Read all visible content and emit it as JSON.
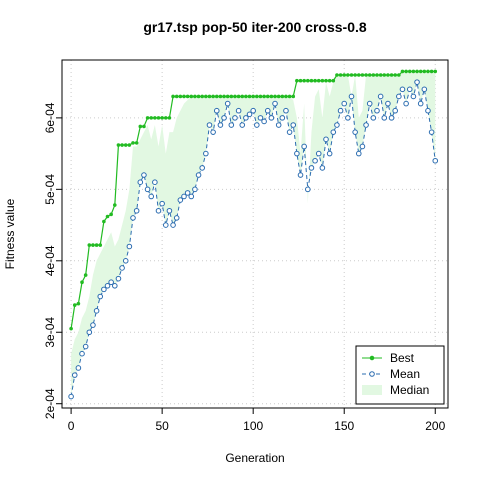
{
  "chart_data": {
    "type": "line",
    "title": "gr17.tsp pop-50 iter-200 cross-0.8",
    "x_label": "Generation",
    "y_label": "Fitness value",
    "xlim": [
      -5,
      207
    ],
    "ylim": [
      0.000194,
      0.000681
    ],
    "xticks": [
      0,
      50,
      100,
      150,
      200
    ],
    "yticks": [
      {
        "value": 0.0002,
        "label": "2e-04"
      },
      {
        "value": 0.0003,
        "label": "3e-04"
      },
      {
        "value": 0.0004,
        "label": "4e-04"
      },
      {
        "value": 0.0005,
        "label": "5e-04"
      },
      {
        "value": 0.0006,
        "label": "6e-04"
      }
    ],
    "grid": true,
    "legend": "bottomright",
    "x": [
      0,
      2,
      4,
      6,
      8,
      10,
      12,
      14,
      16,
      18,
      20,
      22,
      24,
      26,
      28,
      30,
      32,
      34,
      36,
      38,
      40,
      42,
      44,
      46,
      48,
      50,
      52,
      54,
      56,
      58,
      60,
      62,
      64,
      66,
      68,
      70,
      72,
      74,
      76,
      78,
      80,
      82,
      84,
      86,
      88,
      90,
      92,
      94,
      96,
      98,
      100,
      102,
      104,
      106,
      108,
      110,
      112,
      114,
      116,
      118,
      120,
      122,
      124,
      126,
      128,
      130,
      132,
      134,
      136,
      138,
      140,
      142,
      144,
      146,
      148,
      150,
      152,
      154,
      156,
      158,
      160,
      162,
      164,
      166,
      168,
      170,
      172,
      174,
      176,
      178,
      180,
      182,
      184,
      186,
      188,
      190,
      192,
      194,
      196,
      198,
      200
    ],
    "series": [
      {
        "name": "Best",
        "color": "#22bb22",
        "values": [
          0.000305,
          0.000338,
          0.00034,
          0.00037,
          0.00038,
          0.000422,
          0.000422,
          0.000422,
          0.000422,
          0.000455,
          0.000462,
          0.000465,
          0.000478,
          0.000562,
          0.000562,
          0.000562,
          0.000562,
          0.000565,
          0.000565,
          0.000588,
          0.000588,
          0.0006,
          0.0006,
          0.0006,
          0.0006,
          0.0006,
          0.0006,
          0.0006,
          0.00063,
          0.00063,
          0.00063,
          0.00063,
          0.00063,
          0.00063,
          0.00063,
          0.00063,
          0.00063,
          0.00063,
          0.00063,
          0.00063,
          0.00063,
          0.00063,
          0.00063,
          0.00063,
          0.00063,
          0.00063,
          0.00063,
          0.00063,
          0.00063,
          0.00063,
          0.00063,
          0.00063,
          0.00063,
          0.00063,
          0.00063,
          0.00063,
          0.00063,
          0.00063,
          0.00063,
          0.00063,
          0.00063,
          0.00063,
          0.000652,
          0.000652,
          0.000652,
          0.000652,
          0.000652,
          0.000652,
          0.000652,
          0.000652,
          0.000652,
          0.000652,
          0.000652,
          0.00066,
          0.00066,
          0.00066,
          0.00066,
          0.00066,
          0.00066,
          0.00066,
          0.00066,
          0.00066,
          0.00066,
          0.00066,
          0.00066,
          0.00066,
          0.00066,
          0.00066,
          0.00066,
          0.00066,
          0.00066,
          0.000665,
          0.000665,
          0.000665,
          0.000665,
          0.000665,
          0.000665,
          0.000665,
          0.000665,
          0.000665,
          0.000665
        ]
      },
      {
        "name": "Mean",
        "color": "#2b6cb0",
        "values": [
          0.00021,
          0.00024,
          0.00025,
          0.00027,
          0.00028,
          0.0003,
          0.00031,
          0.00033,
          0.00035,
          0.00036,
          0.000365,
          0.00037,
          0.000365,
          0.000375,
          0.00039,
          0.0004,
          0.00042,
          0.00046,
          0.00047,
          0.00051,
          0.00052,
          0.0005,
          0.00049,
          0.00051,
          0.00047,
          0.00048,
          0.00045,
          0.00047,
          0.00045,
          0.00046,
          0.000485,
          0.00049,
          0.000495,
          0.00049,
          0.0005,
          0.00052,
          0.00053,
          0.00055,
          0.00059,
          0.00058,
          0.00061,
          0.00059,
          0.0006,
          0.00062,
          0.00059,
          0.0006,
          0.00061,
          0.00059,
          0.0006,
          0.000605,
          0.00061,
          0.00059,
          0.0006,
          0.000595,
          0.00061,
          0.0006,
          0.00062,
          0.00059,
          0.0006,
          0.00061,
          0.00058,
          0.00059,
          0.00055,
          0.00052,
          0.00056,
          0.0005,
          0.00053,
          0.00054,
          0.00055,
          0.00053,
          0.00057,
          0.00055,
          0.00058,
          0.00059,
          0.00061,
          0.00062,
          0.0006,
          0.00063,
          0.00058,
          0.00055,
          0.00056,
          0.00059,
          0.00062,
          0.0006,
          0.00061,
          0.00063,
          0.0006,
          0.00062,
          0.0006,
          0.00061,
          0.00063,
          0.00064,
          0.00062,
          0.00064,
          0.00063,
          0.00065,
          0.00062,
          0.00064,
          0.00061,
          0.00058,
          0.00054
        ]
      },
      {
        "name": "Median",
        "color": "#e2f8e2",
        "values": [
          0.00027,
          0.00029,
          0.0003,
          0.00032,
          0.00033,
          0.00035,
          0.00038,
          0.0004,
          0.00041,
          0.00042,
          0.00043,
          0.00044,
          0.00042,
          0.00043,
          0.00045,
          0.00047,
          0.0005,
          0.00056,
          0.00056,
          0.00057,
          0.00058,
          0.00059,
          0.00057,
          0.00059,
          0.00056,
          0.00059,
          0.00055,
          0.00058,
          0.00058,
          0.0006,
          0.00061,
          0.00062,
          0.000625,
          0.00063,
          0.00063,
          0.00063,
          0.00063,
          0.00063,
          0.00063,
          0.00063,
          0.00063,
          0.00063,
          0.00063,
          0.00063,
          0.00063,
          0.00063,
          0.00063,
          0.00063,
          0.00063,
          0.00063,
          0.00063,
          0.00063,
          0.00063,
          0.00063,
          0.00063,
          0.00063,
          0.00063,
          0.00063,
          0.00063,
          0.00063,
          0.00063,
          0.000625,
          0.0006,
          0.00055,
          0.00062,
          0.00048,
          0.00058,
          0.00063,
          0.00064,
          0.0006,
          0.00065,
          0.00063,
          0.00065,
          0.00066,
          0.00066,
          0.00066,
          0.00066,
          0.00063,
          0.00066,
          0.0006,
          0.00061,
          0.00066,
          0.00066,
          0.00066,
          0.00066,
          0.00066,
          0.00066,
          0.00066,
          0.00066,
          0.00066,
          0.00066,
          0.000665,
          0.000665,
          0.000665,
          0.000665,
          0.000665,
          0.000665,
          0.000665,
          0.000665,
          0.000665,
          0.000665
        ]
      }
    ]
  }
}
